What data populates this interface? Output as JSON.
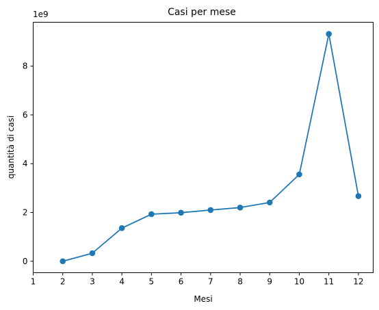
{
  "chart_data": {
    "type": "line",
    "title": "Casi per mese",
    "xlabel": "Mesi",
    "ylabel": "quantità di casi",
    "offset_text": "1e9",
    "x_ticks": [
      "1",
      "2",
      "3",
      "4",
      "5",
      "6",
      "7",
      "8",
      "9",
      "10",
      "11",
      "12"
    ],
    "y_ticks": [
      "0",
      "2",
      "4",
      "6",
      "8"
    ],
    "xlim": [
      1,
      12.5
    ],
    "ylim": [
      -0.47,
      9.8
    ],
    "grid": false,
    "legend": "none",
    "series": [
      {
        "color": "#1f77b4",
        "marker": "circle",
        "x": [
          2,
          3,
          4,
          5,
          6,
          7,
          8,
          9,
          10,
          11,
          12
        ],
        "y": [
          0.0,
          0.33,
          1.36,
          1.93,
          1.99,
          2.1,
          2.2,
          2.41,
          3.56,
          9.32,
          2.67
        ]
      }
    ]
  }
}
